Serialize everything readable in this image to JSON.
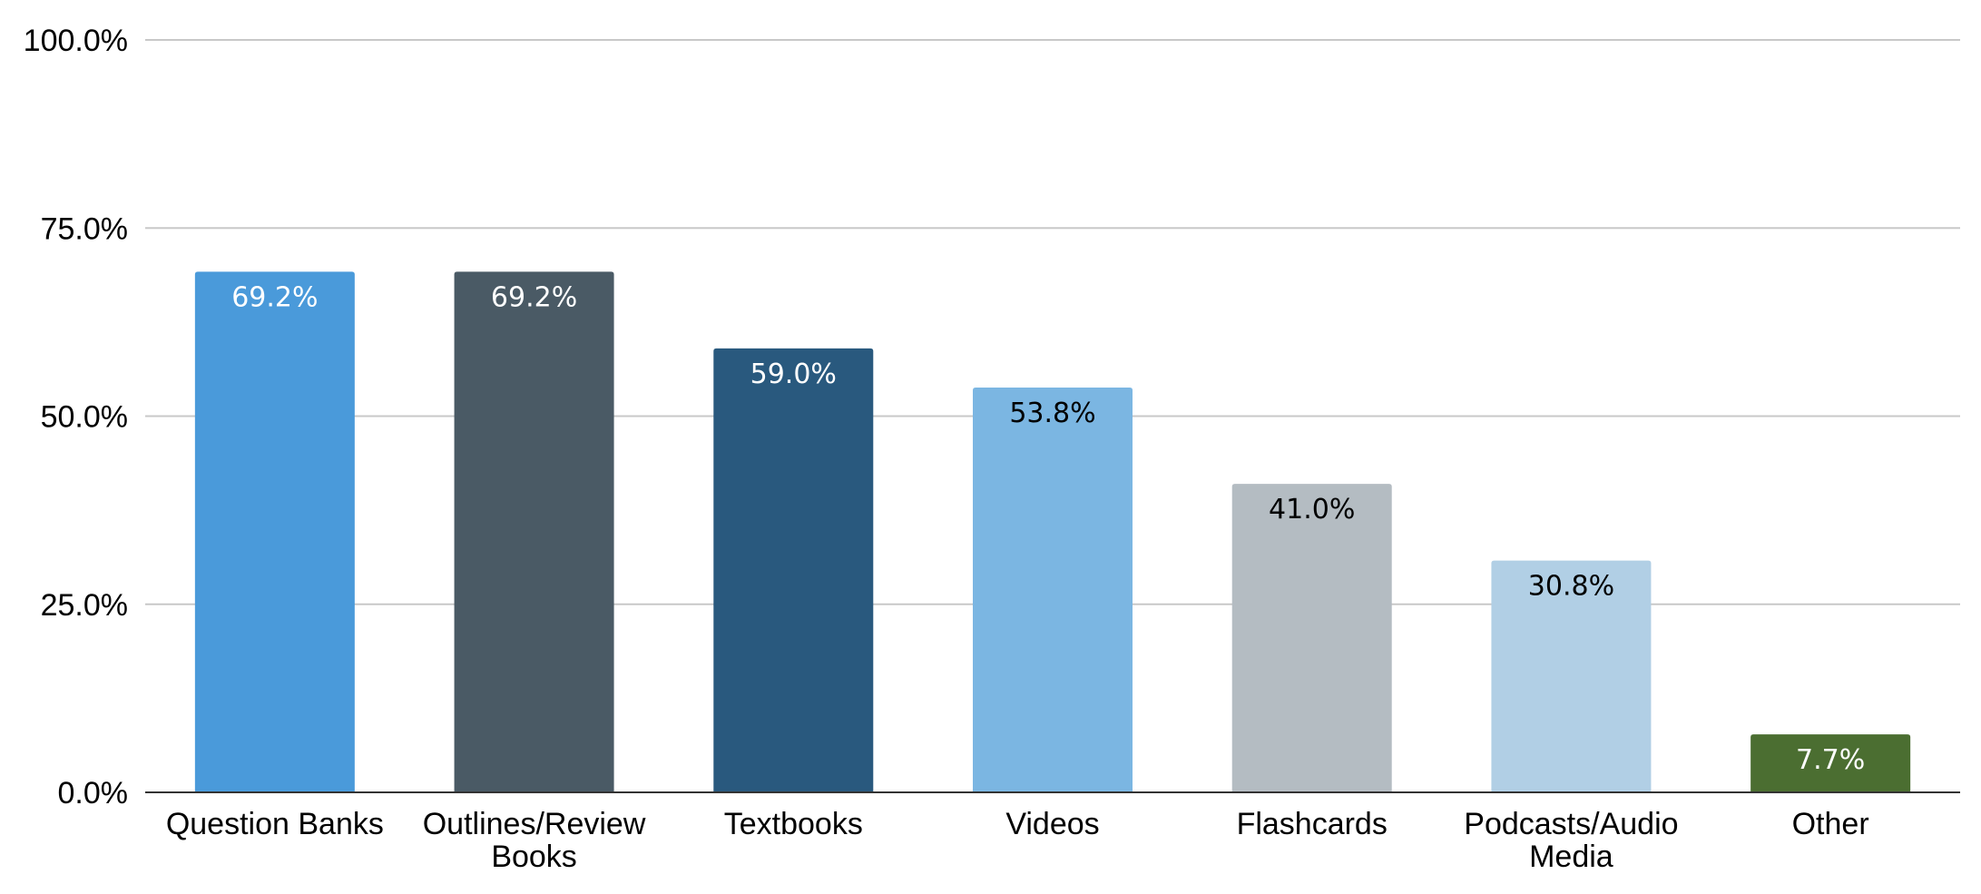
{
  "chart_data": {
    "type": "bar",
    "categories": [
      [
        "Question Banks"
      ],
      [
        "Outlines/Review",
        "Books"
      ],
      [
        "Textbooks"
      ],
      [
        "Videos"
      ],
      [
        "Flashcards"
      ],
      [
        "Podcasts/Audio",
        "Media"
      ],
      [
        "Other"
      ]
    ],
    "values": [
      69.2,
      69.2,
      59.0,
      53.8,
      41.0,
      30.8,
      7.7
    ],
    "value_labels": [
      "69.2%",
      "69.2%",
      "59.0%",
      "53.8%",
      "41.0%",
      "30.8%",
      "7.7%"
    ],
    "bar_colors": [
      "#4a9ada",
      "#4a5a65",
      "#29597e",
      "#7bb6e2",
      "#b4bcc2",
      "#b1cfe5",
      "#4b6e31"
    ],
    "label_colors": [
      "#ffffff",
      "#ffffff",
      "#ffffff",
      "#000000",
      "#000000",
      "#000000",
      "#ffffff"
    ],
    "ylim": [
      0,
      100
    ],
    "y_ticks": [
      0,
      25,
      50,
      75,
      100
    ],
    "y_tick_labels": [
      "0.0%",
      "25.0%",
      "50.0%",
      "75.0%",
      "100.0%"
    ],
    "grid": true,
    "gridline_color": "#c8c8c8",
    "axis_color": "#333333",
    "title": "",
    "xlabel": "",
    "ylabel": ""
  }
}
